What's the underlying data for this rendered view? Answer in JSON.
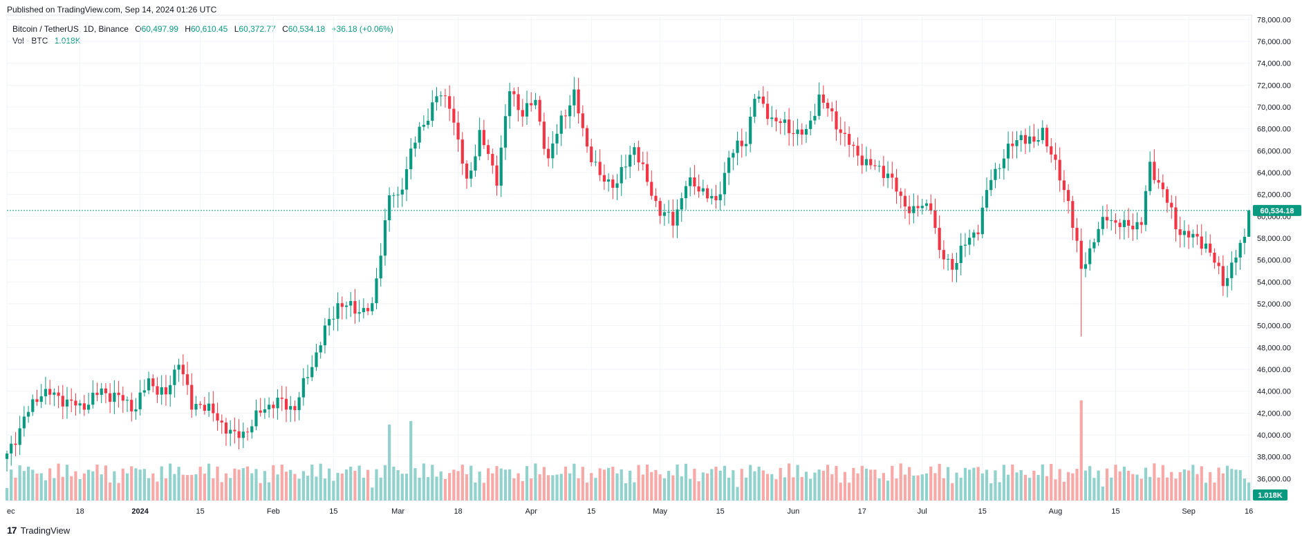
{
  "header": {
    "published": "Published on TradingView.com, Sep 14, 2024 01:26 UTC"
  },
  "legend": {
    "symbol": "Bitcoin / TetherUS, 1D, Binance",
    "o_label": "O",
    "o": "60,497.99",
    "h_label": "H",
    "h": "60,610.45",
    "l_label": "L",
    "l": "60,372.77",
    "c_label": "C",
    "c": "60,534.18",
    "change": "+36.18 (+0.06%)",
    "vol_label": "Vol · BTC",
    "vol_value": "1.018K"
  },
  "footer": {
    "brand": "TradingView",
    "logo": "17"
  },
  "colors": {
    "up": "#089981",
    "down": "#f23645",
    "up_vol": "#92d2cc",
    "down_vol": "#f7a9a7",
    "grid": "#f0f3fa",
    "axis_text": "#131722"
  },
  "chart_data": {
    "type": "candlestick",
    "price_axis_ticks": [
      "36,000.00",
      "38,000.00",
      "40,000.00",
      "42,000.00",
      "44,000.00",
      "46,000.00",
      "48,000.00",
      "50,000.00",
      "52,000.00",
      "54,000.00",
      "56,000.00",
      "58,000.00",
      "60,000.00",
      "62,000.00",
      "64,000.00",
      "66,000.00",
      "68,000.00",
      "70,000.00",
      "72,000.00",
      "74,000.00",
      "76,000.00",
      "78,000.00"
    ],
    "ylim": [
      34000,
      78400
    ],
    "time_axis_ticks": [
      {
        "day": 0,
        "label": "ec"
      },
      {
        "day": 17,
        "label": "18"
      },
      {
        "day": 31,
        "label": "2024"
      },
      {
        "day": 45,
        "label": "15"
      },
      {
        "day": 62,
        "label": "Feb"
      },
      {
        "day": 76,
        "label": "15"
      },
      {
        "day": 91,
        "label": "Mar"
      },
      {
        "day": 105,
        "label": "18"
      },
      {
        "day": 122,
        "label": "Apr"
      },
      {
        "day": 136,
        "label": "15"
      },
      {
        "day": 152,
        "label": "May"
      },
      {
        "day": 166,
        "label": "15"
      },
      {
        "day": 183,
        "label": "Jun"
      },
      {
        "day": 199,
        "label": "17"
      },
      {
        "day": 213,
        "label": "Jul"
      },
      {
        "day": 227,
        "label": "15"
      },
      {
        "day": 244,
        "label": "Aug"
      },
      {
        "day": 258,
        "label": "15"
      },
      {
        "day": 275,
        "label": "Sep"
      },
      {
        "day": 289,
        "label": "16"
      }
    ],
    "last_price": 60534.18,
    "last_price_label": "60,534.18",
    "last_volume_label": "1.018K",
    "close_anchors": [
      [
        0,
        38000
      ],
      [
        4,
        41500
      ],
      [
        8,
        44000
      ],
      [
        13,
        43300
      ],
      [
        17,
        42500
      ],
      [
        22,
        44000
      ],
      [
        26,
        43400
      ],
      [
        30,
        42500
      ],
      [
        33,
        45000
      ],
      [
        37,
        43500
      ],
      [
        40,
        47000
      ],
      [
        43,
        42500
      ],
      [
        45,
        43000
      ],
      [
        49,
        41500
      ],
      [
        53,
        39800
      ],
      [
        56,
        40500
      ],
      [
        60,
        42600
      ],
      [
        63,
        43000
      ],
      [
        67,
        42500
      ],
      [
        70,
        45500
      ],
      [
        74,
        49500
      ],
      [
        77,
        52000
      ],
      [
        81,
        51500
      ],
      [
        85,
        51500
      ],
      [
        87,
        57000
      ],
      [
        89,
        62000
      ],
      [
        91,
        61500
      ],
      [
        94,
        66000
      ],
      [
        97,
        68500
      ],
      [
        100,
        71000
      ],
      [
        103,
        70500
      ],
      [
        107,
        63000
      ],
      [
        110,
        67500
      ],
      [
        114,
        63500
      ],
      [
        117,
        71500
      ],
      [
        120,
        69500
      ],
      [
        123,
        70500
      ],
      [
        126,
        65000
      ],
      [
        129,
        69000
      ],
      [
        132,
        71000
      ],
      [
        135,
        66500
      ],
      [
        138,
        63500
      ],
      [
        142,
        63000
      ],
      [
        146,
        66500
      ],
      [
        149,
        63000
      ],
      [
        152,
        60500
      ],
      [
        155,
        59500
      ],
      [
        158,
        63000
      ],
      [
        162,
        62500
      ],
      [
        165,
        61000
      ],
      [
        168,
        65500
      ],
      [
        172,
        67000
      ],
      [
        174,
        71000
      ],
      [
        178,
        69000
      ],
      [
        182,
        68000
      ],
      [
        186,
        67500
      ],
      [
        189,
        71000
      ],
      [
        193,
        68500
      ],
      [
        197,
        66000
      ],
      [
        201,
        64600
      ],
      [
        205,
        64000
      ],
      [
        208,
        61500
      ],
      [
        211,
        60500
      ],
      [
        215,
        61200
      ],
      [
        217,
        56500
      ],
      [
        220,
        55500
      ],
      [
        224,
        58000
      ],
      [
        226,
        59000
      ],
      [
        229,
        63500
      ],
      [
        232,
        65500
      ],
      [
        236,
        67500
      ],
      [
        239,
        66500
      ],
      [
        241,
        68000
      ],
      [
        244,
        64500
      ],
      [
        247,
        61500
      ],
      [
        250,
        55000
      ],
      [
        253,
        58000
      ],
      [
        256,
        60000
      ],
      [
        260,
        59000
      ],
      [
        264,
        59500
      ],
      [
        266,
        64500
      ],
      [
        269,
        62500
      ],
      [
        272,
        59000
      ],
      [
        276,
        58000
      ],
      [
        279,
        57500
      ],
      [
        283,
        54000
      ],
      [
        285,
        55500
      ],
      [
        288,
        58000
      ],
      [
        289,
        60534
      ]
    ]
  }
}
